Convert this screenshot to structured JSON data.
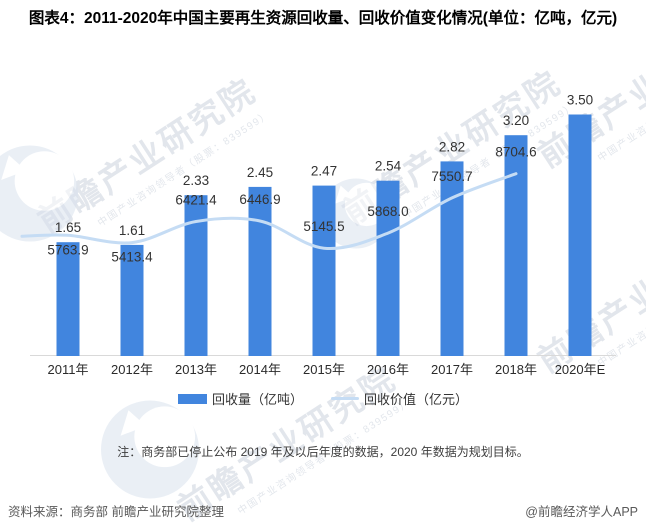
{
  "title": "图表4：2011-2020年中国主要再生资源回收量、回收价值变化情况(单位：亿吨，亿元)",
  "watermark": {
    "brand": "前瞻产业研究院",
    "subtitle": "中国产业咨询领导者（股票：839599）"
  },
  "chart_data": {
    "type": "bar+line",
    "categories": [
      "2011年",
      "2012年",
      "2013年",
      "2014年",
      "2015年",
      "2016年",
      "2017年",
      "2018年",
      "2020年E"
    ],
    "series": [
      {
        "name": "回收量（亿吨）",
        "type": "bar",
        "values": [
          1.65,
          1.61,
          2.33,
          2.45,
          2.47,
          2.54,
          2.82,
          3.2,
          3.5
        ],
        "labels": [
          "1.65",
          "1.61",
          "2.33",
          "2.45",
          "2.47",
          "2.54",
          "2.82",
          "3.20",
          "3.50"
        ]
      },
      {
        "name": "回收价值（亿元）",
        "type": "line",
        "values": [
          5763.9,
          5413.4,
          6421.4,
          6446.9,
          5145.5,
          5868.0,
          7550.7,
          8704.6,
          null
        ],
        "labels": [
          "5763.9",
          "5413.4",
          "6421.4",
          "6446.9",
          "5145.5",
          "5868.0",
          "7550.7",
          "8704.6",
          ""
        ],
        "label_side": [
          "below",
          "below",
          "above",
          "above",
          "above",
          "above",
          "above",
          "above",
          null
        ]
      }
    ],
    "bar_axis_max": 4.0,
    "line_axis_max": 17000,
    "grid": false,
    "axes_hidden": true,
    "smooth_line": true,
    "legend_position": "bottom"
  },
  "note": "注：商务部已停止公布 2019 年及以后年度的数据，2020 年数据为规划目标。",
  "footer": {
    "source": "资料来源：商务部 前瞻产业研究院整理",
    "credit": "@前瞻经济学人APP"
  },
  "colors": {
    "bar": "#4185DE",
    "line": "#C5DCF4",
    "axis": "#D9D9D9",
    "label": "#333333",
    "year_label": "#2B2B2B",
    "footer_text": "#595959",
    "watermark": "#BCC5D2"
  }
}
